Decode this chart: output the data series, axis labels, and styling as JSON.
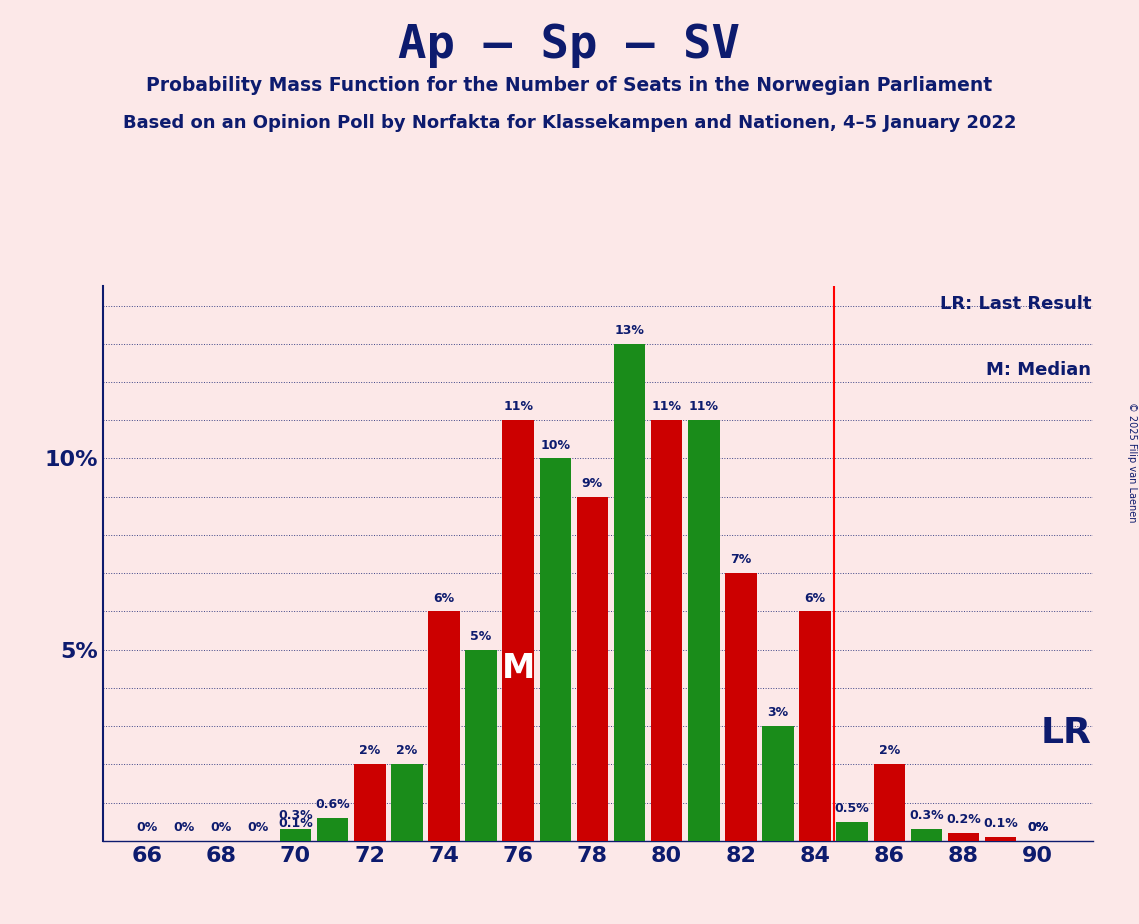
{
  "title": "Ap – Sp – SV",
  "subtitle1": "Probability Mass Function for the Number of Seats in the Norwegian Parliament",
  "subtitle2": "Based on an Opinion Poll by Norfakta for Klassekampen and Nationen, 4–5 January 2022",
  "copyright": "© 2025 Filip van Laenen",
  "red_seats": [
    66,
    68,
    70,
    72,
    74,
    76,
    78,
    80,
    82,
    84,
    86,
    88,
    89,
    90
  ],
  "red_values": [
    0,
    0,
    0.1,
    2,
    6,
    11,
    9,
    11,
    7,
    6,
    2,
    0.2,
    0.1,
    0
  ],
  "red_labels": [
    "0%",
    "0%",
    "0.1%",
    "2%",
    "6%",
    "11%",
    "9%",
    "11%",
    "7%",
    "6%",
    "2%",
    "0.2%",
    "0.1%",
    "0%"
  ],
  "green_seats": [
    67,
    69,
    70,
    71,
    73,
    75,
    77,
    79,
    81,
    83,
    85,
    86,
    87,
    90
  ],
  "green_values": [
    0,
    0,
    0.3,
    0.6,
    2,
    5,
    10,
    13,
    11,
    3,
    0.5,
    0,
    0.3,
    0
  ],
  "green_labels": [
    "0%",
    "0%",
    "0.3%",
    "0.6%",
    "2%",
    "5%",
    "10%",
    "13%",
    "11%",
    "3%",
    "0.5%",
    "",
    "0.3%",
    "0%"
  ],
  "lr_line_x": 84.5,
  "median_x": 76,
  "background_color": "#fce8e8",
  "red_color": "#cc0000",
  "green_color": "#1a8c1a",
  "title_color": "#0d1b6e",
  "label_color": "#0d1b6e",
  "ylim": [
    0,
    14.5
  ],
  "bar_width": 0.85,
  "xlim_left": 64.8,
  "xlim_right": 91.5
}
